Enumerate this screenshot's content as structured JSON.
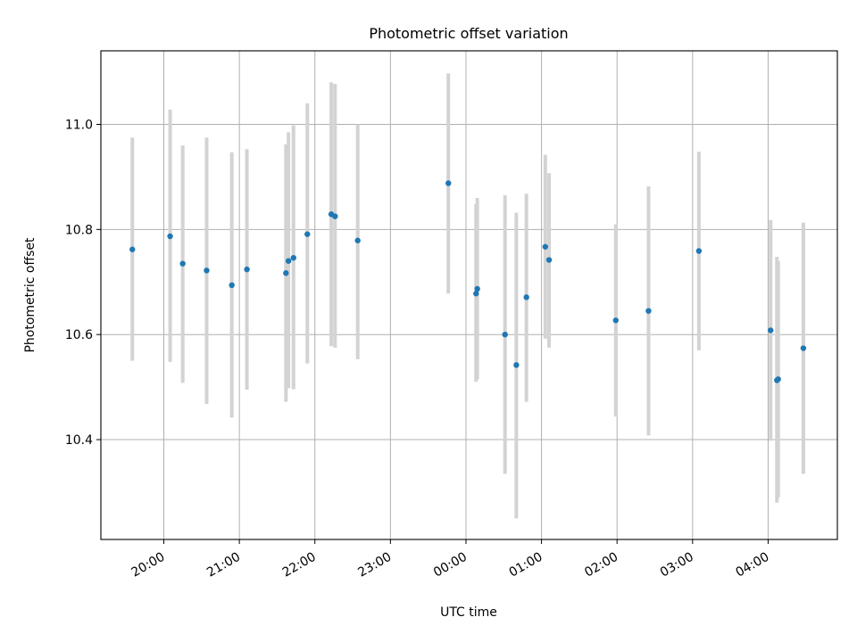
{
  "chart_data": {
    "type": "scatter",
    "title": "Photometric offset variation",
    "xlabel": "UTC time",
    "ylabel": "Photometric offset",
    "x_unit": "UTC time (hours after 19:00, axis wraps past midnight)",
    "x_ticks": [
      "20:00",
      "21:00",
      "22:00",
      "23:00",
      "00:00",
      "01:00",
      "02:00",
      "03:00",
      "04:00"
    ],
    "y_ticks": [
      "10.4",
      "10.6",
      "10.8",
      "11.0"
    ],
    "xlim": [
      "19:10",
      "28:55"
    ],
    "ylim": [
      10.21,
      11.14
    ],
    "grid": true,
    "colors": {
      "points": "#1f77b4",
      "errorbars": "#d3d3d3",
      "grid": "#b0b0b0"
    },
    "points": [
      {
        "time": "19:35",
        "y": 10.762,
        "y_low": 10.55,
        "y_high": 10.975
      },
      {
        "time": "20:05",
        "y": 10.787,
        "y_low": 10.548,
        "y_high": 11.028
      },
      {
        "time": "20:15",
        "y": 10.735,
        "y_low": 10.508,
        "y_high": 10.96
      },
      {
        "time": "20:34",
        "y": 10.722,
        "y_low": 10.468,
        "y_high": 10.975
      },
      {
        "time": "20:54",
        "y": 10.694,
        "y_low": 10.442,
        "y_high": 10.947
      },
      {
        "time": "21:06",
        "y": 10.724,
        "y_low": 10.495,
        "y_high": 10.953
      },
      {
        "time": "21:37",
        "y": 10.717,
        "y_low": 10.472,
        "y_high": 10.962
      },
      {
        "time": "21:39",
        "y": 10.74,
        "y_low": 10.498,
        "y_high": 10.985
      },
      {
        "time": "21:43",
        "y": 10.746,
        "y_low": 10.496,
        "y_high": 10.998
      },
      {
        "time": "21:54",
        "y": 10.791,
        "y_low": 10.545,
        "y_high": 11.04
      },
      {
        "time": "22:13",
        "y": 10.829,
        "y_low": 10.578,
        "y_high": 11.08
      },
      {
        "time": "22:16",
        "y": 10.825,
        "y_low": 10.575,
        "y_high": 11.077
      },
      {
        "time": "22:34",
        "y": 10.779,
        "y_low": 10.553,
        "y_high": 11.0
      },
      {
        "time": "23:46",
        "y": 10.888,
        "y_low": 10.678,
        "y_high": 11.097
      },
      {
        "time": "00:08",
        "y": 10.678,
        "y_low": 10.51,
        "y_high": 10.848
      },
      {
        "time": "00:09",
        "y": 10.687,
        "y_low": 10.515,
        "y_high": 10.86
      },
      {
        "time": "00:31",
        "y": 10.6,
        "y_low": 10.335,
        "y_high": 10.865
      },
      {
        "time": "00:40",
        "y": 10.542,
        "y_low": 10.25,
        "y_high": 10.832
      },
      {
        "time": "00:48",
        "y": 10.671,
        "y_low": 10.472,
        "y_high": 10.868
      },
      {
        "time": "01:03",
        "y": 10.767,
        "y_low": 10.592,
        "y_high": 10.942
      },
      {
        "time": "01:06",
        "y": 10.742,
        "y_low": 10.575,
        "y_high": 10.907
      },
      {
        "time": "01:59",
        "y": 10.627,
        "y_low": 10.444,
        "y_high": 10.81
      },
      {
        "time": "02:25",
        "y": 10.645,
        "y_low": 10.408,
        "y_high": 10.882
      },
      {
        "time": "03:05",
        "y": 10.759,
        "y_low": 10.57,
        "y_high": 10.948
      },
      {
        "time": "04:02",
        "y": 10.608,
        "y_low": 10.398,
        "y_high": 10.818
      },
      {
        "time": "04:07",
        "y": 10.513,
        "y_low": 10.28,
        "y_high": 10.748
      },
      {
        "time": "04:08",
        "y": 10.515,
        "y_low": 10.29,
        "y_high": 10.74
      },
      {
        "time": "04:28",
        "y": 10.574,
        "y_low": 10.335,
        "y_high": 10.813
      }
    ]
  }
}
